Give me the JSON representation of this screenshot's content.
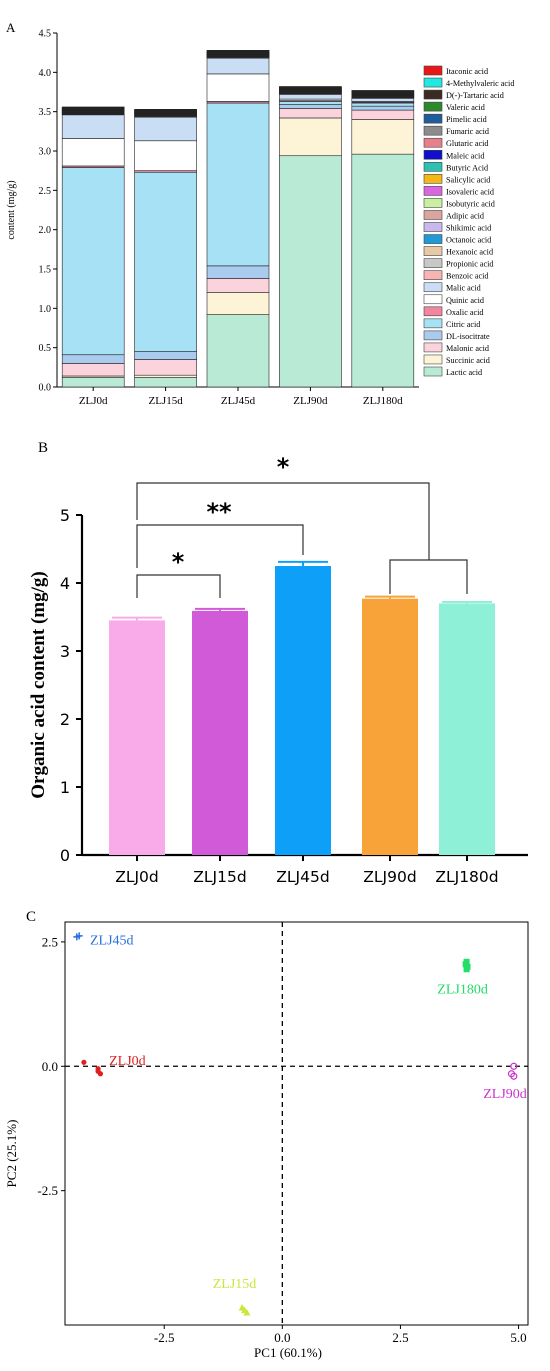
{
  "chart_data": [
    {
      "panel": "A",
      "type": "bar",
      "stacked": true,
      "ylabel": "content (mg/g)",
      "ylim": [
        0,
        4.5
      ],
      "yticks": [
        "0.0",
        "0.5",
        "1.0",
        "1.5",
        "2.0",
        "2.5",
        "3.0",
        "3.5",
        "4.0",
        "4.5"
      ],
      "categories": [
        "ZLJ0d",
        "ZLJ15d",
        "ZLJ45d",
        "ZLJ90d",
        "ZLJ180d"
      ],
      "legend_position": "right",
      "series": [
        {
          "name": "Lactic acid",
          "color": "#b8ead5",
          "values": [
            0.12,
            0.12,
            0.92,
            2.94,
            2.96
          ]
        },
        {
          "name": "Succinic acid",
          "color": "#fdf3d6",
          "values": [
            0.02,
            0.03,
            0.28,
            0.48,
            0.44
          ]
        },
        {
          "name": "Malonic acid",
          "color": "#fbd3dd",
          "values": [
            0.16,
            0.2,
            0.18,
            0.12,
            0.12
          ]
        },
        {
          "name": "DL-isocitrate",
          "color": "#a8cbee",
          "values": [
            0.11,
            0.1,
            0.16,
            0.05,
            0.05
          ]
        },
        {
          "name": "Citric acid",
          "color": "#a6e1f5",
          "values": [
            2.38,
            2.28,
            2.07,
            0.04,
            0.04
          ]
        },
        {
          "name": "Oxalic acid",
          "color": "#f286a0",
          "values": [
            0.02,
            0.02,
            0.02,
            0.01,
            0.01
          ]
        },
        {
          "name": "Quinic acid",
          "color": "#ffffff",
          "values": [
            0.35,
            0.38,
            0.35,
            0.02,
            0.01
          ]
        },
        {
          "name": "Malic acid",
          "color": "#c9ddf5",
          "values": [
            0.3,
            0.3,
            0.2,
            0.06,
            0.04
          ]
        },
        {
          "name": "Benzoic acid",
          "color": "#f8b3b3",
          "values": [
            0.01,
            0.01,
            0.01,
            0.01,
            0.01
          ]
        },
        {
          "name": "Propionic acid",
          "color": "#c8c8c8",
          "values": [
            0.005,
            0.005,
            0.005,
            0.005,
            0.005
          ]
        },
        {
          "name": "Hexanoic acid",
          "color": "#e8c8a6",
          "values": [
            0.005,
            0.005,
            0.005,
            0.005,
            0.005
          ]
        },
        {
          "name": "Octanoic acid",
          "color": "#1f9ad6",
          "values": [
            0.005,
            0.005,
            0.005,
            0.005,
            0.005
          ]
        },
        {
          "name": "Shikimic acid",
          "color": "#c8b8ee",
          "values": [
            0.005,
            0.005,
            0.005,
            0.005,
            0.005
          ]
        },
        {
          "name": "Adipic acid",
          "color": "#d9a59e",
          "values": [
            0.005,
            0.005,
            0.005,
            0.005,
            0.005
          ]
        },
        {
          "name": "Isobutyric acid",
          "color": "#c9f0a0",
          "values": [
            0.005,
            0.005,
            0.005,
            0.005,
            0.005
          ]
        },
        {
          "name": "Isovaleric acid",
          "color": "#d866e0",
          "values": [
            0.005,
            0.005,
            0.005,
            0.005,
            0.005
          ]
        },
        {
          "name": "Salicylic acid",
          "color": "#f3b818",
          "values": [
            0.005,
            0.005,
            0.005,
            0.005,
            0.005
          ]
        },
        {
          "name": "Butyric Acid",
          "color": "#2ec0b0",
          "values": [
            0.005,
            0.005,
            0.005,
            0.005,
            0.005
          ]
        },
        {
          "name": "Maleic acid",
          "color": "#1010cc",
          "values": [
            0.005,
            0.005,
            0.005,
            0.005,
            0.005
          ]
        },
        {
          "name": "Glutaric acid",
          "color": "#e8808c",
          "values": [
            0.005,
            0.005,
            0.005,
            0.005,
            0.005
          ]
        },
        {
          "name": "Fumaric acid",
          "color": "#8c8c8c",
          "values": [
            0.005,
            0.005,
            0.005,
            0.005,
            0.005
          ]
        },
        {
          "name": "Pimelic acid",
          "color": "#1e5c9c",
          "values": [
            0.005,
            0.005,
            0.005,
            0.005,
            0.005
          ]
        },
        {
          "name": "Valeric acid",
          "color": "#2c8a2c",
          "values": [
            0.005,
            0.005,
            0.005,
            0.005,
            0.005
          ]
        },
        {
          "name": "D(-)-Tartaric acid",
          "color": "#3a2a20",
          "values": [
            0.01,
            0.01,
            0.01,
            0.01,
            0.01
          ]
        },
        {
          "name": "4-Methylvaleric acid",
          "color": "#22e8e0",
          "values": [
            0.005,
            0.005,
            0.005,
            0.005,
            0.005
          ]
        },
        {
          "name": "Itaconic acid",
          "color": "#e81818",
          "values": [
            0.005,
            0.005,
            0.005,
            0.005,
            0.005
          ]
        }
      ]
    },
    {
      "panel": "B",
      "type": "bar",
      "ylabel": "Organic acid content (mg/g)",
      "ylim": [
        0,
        5
      ],
      "yticks": [
        "0",
        "1",
        "2",
        "3",
        "4",
        "5"
      ],
      "categories": [
        "ZLJ0d",
        "ZLJ15d",
        "ZLJ45d",
        "ZLJ90d",
        "ZLJ180d"
      ],
      "values": [
        3.45,
        3.59,
        4.25,
        3.77,
        3.7
      ],
      "errors": [
        0.04,
        0.03,
        0.06,
        0.03,
        0.02
      ],
      "colors": [
        "#f9aae8",
        "#d15ad8",
        "#0ea0f8",
        "#f8a23a",
        "#8ff0d8"
      ],
      "significance": [
        {
          "label": "*",
          "between": [
            "ZLJ0d",
            "ZLJ15d"
          ]
        },
        {
          "label": "**",
          "between": [
            "ZLJ0d",
            "ZLJ45d"
          ]
        },
        {
          "label": "*",
          "between": [
            "ZLJ0d",
            "ZLJ90d|ZLJ180d"
          ]
        }
      ]
    },
    {
      "panel": "C",
      "type": "scatter",
      "xlabel": "PC1 (60.1%)",
      "ylabel": "PC2 (25.1%)",
      "xlim": [
        -4.6,
        5.2
      ],
      "ylim": [
        -5.2,
        2.9
      ],
      "xticks": [
        "-2.5",
        "0.0",
        "2.5",
        "5.0"
      ],
      "yticks": [
        "-2.5",
        "0.0",
        "2.5"
      ],
      "reference_lines": {
        "x": 0,
        "y": 0
      },
      "series": [
        {
          "name": "ZLJ0d",
          "color": "#e02020",
          "marker": "dot",
          "points": [
            [
              -4.2,
              0.08
            ],
            [
              -3.9,
              -0.1
            ],
            [
              -3.85,
              -0.15
            ],
            [
              -3.9,
              -0.05
            ]
          ]
        },
        {
          "name": "ZLJ15d",
          "color": "#c8e83a",
          "marker": "triangle",
          "points": [
            [
              -0.85,
              -4.85
            ],
            [
              -0.75,
              -4.95
            ],
            [
              -0.8,
              -4.9
            ]
          ]
        },
        {
          "name": "ZLJ45d",
          "color": "#2a6fe0",
          "marker": "plus",
          "points": [
            [
              -4.35,
              2.6
            ],
            [
              -4.3,
              2.62
            ]
          ]
        },
        {
          "name": "ZLJ90d",
          "color": "#cc33cc",
          "marker": "circle",
          "points": [
            [
              4.9,
              0.0
            ],
            [
              4.85,
              -0.15
            ],
            [
              4.9,
              -0.2
            ]
          ]
        },
        {
          "name": "ZLJ180d",
          "color": "#22dd66",
          "marker": "square",
          "points": [
            [
              3.9,
              2.1
            ],
            [
              3.92,
              2.0
            ],
            [
              3.9,
              1.95
            ],
            [
              3.88,
              2.05
            ]
          ]
        }
      ]
    }
  ]
}
